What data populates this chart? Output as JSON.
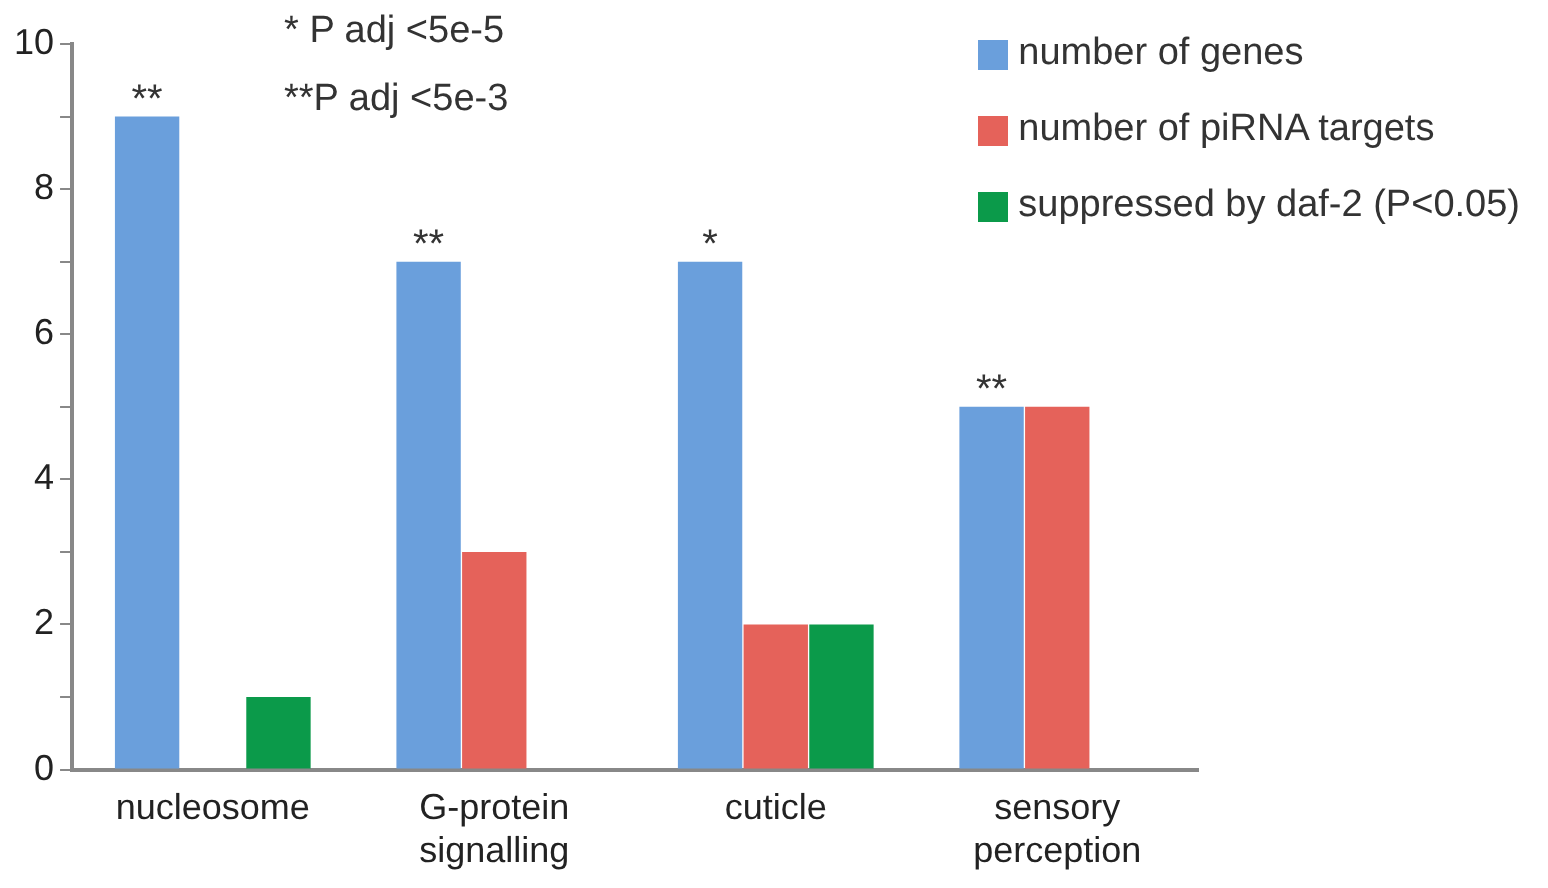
{
  "chart_data": {
    "type": "bar",
    "categories": [
      "nucleosome",
      "G-protein signalling",
      "cuticle",
      "sensory perception"
    ],
    "series": [
      {
        "name": "number of genes",
        "color": "#6a9fdc",
        "values": [
          9,
          7,
          7,
          5
        ]
      },
      {
        "name": "number of piRNA targets",
        "color": "#e5625a",
        "values": [
          null,
          3,
          2,
          5
        ]
      },
      {
        "name": "suppressed by daf-2 (P<0.05)",
        "color": "#0b9a4a",
        "values": [
          1,
          null,
          2,
          null
        ]
      }
    ],
    "ylim": [
      0,
      10
    ],
    "yticks": [
      0,
      {
        "value": 1,
        "label": null
      },
      2,
      {
        "value": 3,
        "label": null
      },
      4,
      {
        "value": 5,
        "label": null
      },
      6,
      {
        "value": 7,
        "label": null
      },
      8,
      {
        "value": 9,
        "label": null
      },
      10
    ],
    "annotations": [
      "* P adj <5e-5",
      "**P adj <5e-3",
      "**",
      "**",
      "*",
      "**"
    ],
    "grid": false,
    "legend": "top right"
  }
}
